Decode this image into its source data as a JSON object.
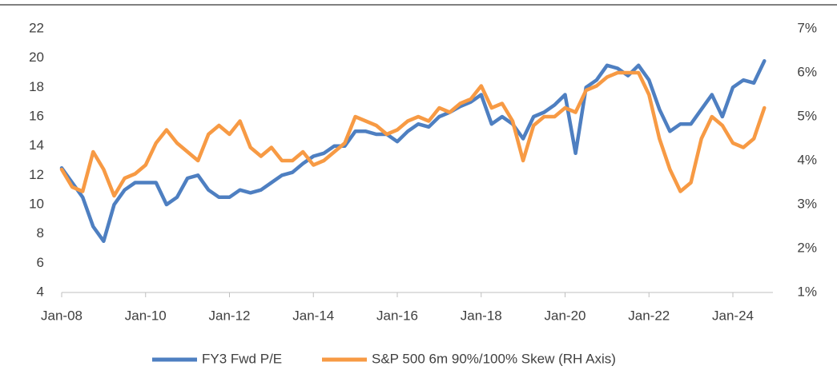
{
  "chart_data": {
    "type": "line",
    "x": [
      "Jan-08",
      "Apr-08",
      "Jul-08",
      "Oct-08",
      "Jan-09",
      "Apr-09",
      "Jul-09",
      "Oct-09",
      "Jan-10",
      "Apr-10",
      "Jul-10",
      "Oct-10",
      "Jan-11",
      "Apr-11",
      "Jul-11",
      "Oct-11",
      "Jan-12",
      "Apr-12",
      "Jul-12",
      "Oct-12",
      "Jan-13",
      "Apr-13",
      "Jul-13",
      "Oct-13",
      "Jan-14",
      "Apr-14",
      "Jul-14",
      "Oct-14",
      "Jan-15",
      "Apr-15",
      "Jul-15",
      "Oct-15",
      "Jan-16",
      "Apr-16",
      "Jul-16",
      "Oct-16",
      "Jan-17",
      "Apr-17",
      "Jul-17",
      "Oct-17",
      "Jan-18",
      "Apr-18",
      "Jul-18",
      "Oct-18",
      "Jan-19",
      "Apr-19",
      "Jul-19",
      "Oct-19",
      "Jan-20",
      "Apr-20",
      "Jul-20",
      "Oct-20",
      "Jan-21",
      "Apr-21",
      "Jul-21",
      "Oct-21",
      "Jan-22",
      "Apr-22",
      "Jul-22",
      "Oct-22",
      "Jan-23",
      "Apr-23",
      "Jul-23",
      "Oct-23",
      "Jan-24",
      "Apr-24",
      "Jul-24",
      "Oct-24"
    ],
    "xticks": [
      "Jan-08",
      "Jan-10",
      "Jan-12",
      "Jan-14",
      "Jan-16",
      "Jan-18",
      "Jan-20",
      "Jan-22",
      "Jan-24"
    ],
    "series": [
      {
        "name": "FY3 Fwd P/E",
        "color": "#4e7fc1",
        "axis": "y",
        "values": [
          12.5,
          11.5,
          10.5,
          8.5,
          7.5,
          10,
          11,
          11.5,
          11.5,
          11.5,
          10,
          10.5,
          11.8,
          12,
          11,
          10.5,
          10.5,
          11,
          10.8,
          11,
          11.5,
          12,
          12.2,
          12.8,
          13.3,
          13.5,
          14,
          14,
          15,
          15,
          14.8,
          14.8,
          14.3,
          15,
          15.5,
          15.3,
          16,
          16.3,
          16.7,
          17,
          17.5,
          15.5,
          16,
          15.5,
          14.5,
          16,
          16.3,
          16.8,
          17.5,
          13.5,
          18,
          18.5,
          19.5,
          19.3,
          18.8,
          19.5,
          18.5,
          16.5,
          15,
          15.5,
          15.5,
          16.5,
          17.5,
          16,
          18,
          18.5,
          18.3,
          19.8
        ]
      },
      {
        "name": "S&P 500 6m 90%/100% Skew (RH Axis)",
        "color": "#f79a44",
        "axis": "y2",
        "values": [
          3.8,
          3.4,
          3.3,
          4.2,
          3.8,
          3.2,
          3.6,
          3.7,
          3.9,
          4.4,
          4.7,
          4.4,
          4.2,
          4.0,
          4.6,
          4.8,
          4.6,
          4.9,
          4.3,
          4.1,
          4.3,
          4.0,
          4.0,
          4.2,
          3.9,
          4.0,
          4.2,
          4.4,
          5.0,
          4.9,
          4.8,
          4.6,
          4.7,
          4.9,
          5.0,
          4.9,
          5.2,
          5.1,
          5.3,
          5.4,
          5.7,
          5.2,
          5.3,
          4.9,
          4.0,
          4.8,
          5.0,
          5.0,
          5.2,
          5.1,
          5.6,
          5.7,
          5.9,
          6.0,
          6.0,
          6.0,
          5.5,
          4.5,
          3.8,
          3.3,
          3.5,
          4.5,
          5.0,
          4.8,
          4.4,
          4.3,
          4.5,
          5.2
        ]
      }
    ],
    "ylim": [
      4,
      22
    ],
    "yticks": [
      4,
      6,
      8,
      10,
      12,
      14,
      16,
      18,
      20,
      22
    ],
    "y2lim": [
      1,
      7
    ],
    "y2ticks": [
      {
        "value": 1,
        "label": "1%"
      },
      {
        "value": 2,
        "label": "2%"
      },
      {
        "value": 3,
        "label": "3%"
      },
      {
        "value": 4,
        "label": "4%"
      },
      {
        "value": 5,
        "label": "5%"
      },
      {
        "value": 6,
        "label": "6%"
      },
      {
        "value": 7,
        "label": "7%"
      }
    ],
    "legend": "bottom"
  }
}
